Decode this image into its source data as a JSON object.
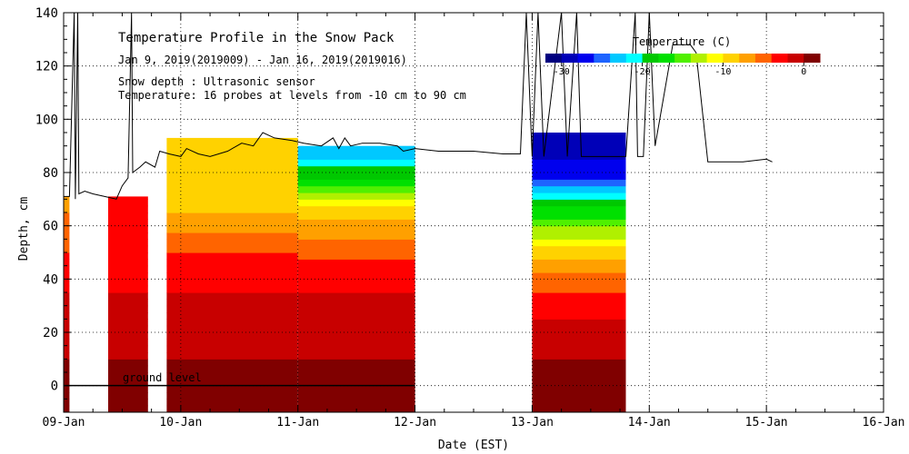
{
  "chart_data": {
    "type": "heatmap",
    "title": "Temperature Profile in the Snow Pack",
    "date_range": "Jan  9, 2019(2019009) - Jan 16, 2019(2019016)",
    "note_depth": "Snow depth : Ultrasonic sensor",
    "note_temp": "Temperature: 16 probes at levels from -10 cm to 90 cm",
    "xlabel": "Date (EST)",
    "ylabel": "Depth, cm",
    "x_ticks": [
      "09-Jan",
      "10-Jan",
      "11-Jan",
      "12-Jan",
      "13-Jan",
      "14-Jan",
      "15-Jan",
      "16-Jan"
    ],
    "xlim_days": [
      0,
      7
    ],
    "ylim": [
      -10,
      140
    ],
    "y_ticks": [
      0,
      20,
      40,
      60,
      80,
      100,
      120,
      140
    ],
    "ground_label": "ground level",
    "colorbar": {
      "title": "Temperature (C)",
      "range": [
        -32,
        2
      ],
      "tick_values": [
        -30,
        -20,
        -10,
        0
      ],
      "tick_labels": [
        "-30",
        "-20",
        "-10",
        "0"
      ],
      "colors": [
        "#000080",
        "#0000b8",
        "#0000ee",
        "#1e64ff",
        "#00c8ff",
        "#00ffff",
        "#00c800",
        "#00e000",
        "#50f000",
        "#b0f000",
        "#ffff00",
        "#ffd200",
        "#ffa000",
        "#ff6400",
        "#ff0000",
        "#c80000",
        "#800000"
      ]
    },
    "snow_depth_cm": [
      [
        0.0,
        71
      ],
      [
        0.05,
        71
      ],
      [
        0.09,
        140
      ],
      [
        0.1,
        70
      ],
      [
        0.12,
        140
      ],
      [
        0.13,
        72
      ],
      [
        0.18,
        73
      ],
      [
        0.25,
        72
      ],
      [
        0.35,
        71
      ],
      [
        0.45,
        70
      ],
      [
        0.5,
        75
      ],
      [
        0.55,
        78
      ],
      [
        0.58,
        140
      ],
      [
        0.59,
        80
      ],
      [
        0.65,
        82
      ],
      [
        0.7,
        84
      ],
      [
        0.78,
        82
      ],
      [
        0.82,
        88
      ],
      [
        0.9,
        87
      ],
      [
        1.0,
        86
      ],
      [
        1.05,
        89
      ],
      [
        1.15,
        87
      ],
      [
        1.25,
        86
      ],
      [
        1.4,
        88
      ],
      [
        1.52,
        91
      ],
      [
        1.62,
        90
      ],
      [
        1.7,
        95
      ],
      [
        1.8,
        93
      ],
      [
        1.95,
        92
      ],
      [
        2.05,
        91
      ],
      [
        2.2,
        90
      ],
      [
        2.3,
        93
      ],
      [
        2.35,
        89
      ],
      [
        2.4,
        93
      ],
      [
        2.45,
        90
      ],
      [
        2.55,
        91
      ],
      [
        2.7,
        91
      ],
      [
        2.85,
        90
      ],
      [
        2.9,
        88
      ],
      [
        3.0,
        89
      ],
      [
        3.2,
        88
      ],
      [
        3.5,
        88
      ],
      [
        3.75,
        87
      ],
      [
        3.9,
        87
      ],
      [
        3.95,
        140
      ],
      [
        4.0,
        86
      ],
      [
        4.05,
        140
      ],
      [
        4.1,
        86
      ],
      [
        4.25,
        140
      ],
      [
        4.3,
        86
      ],
      [
        4.38,
        140
      ],
      [
        4.42,
        86
      ],
      [
        4.8,
        86
      ],
      [
        4.88,
        140
      ],
      [
        4.9,
        86
      ],
      [
        4.95,
        86
      ],
      [
        5.0,
        140
      ],
      [
        5.05,
        90
      ],
      [
        5.2,
        128
      ],
      [
        5.35,
        128
      ],
      [
        5.4,
        125
      ],
      [
        5.5,
        84
      ],
      [
        5.8,
        84
      ],
      [
        6.0,
        85
      ],
      [
        6.05,
        84
      ]
    ],
    "temperature_segments": [
      {
        "start": 0.0,
        "end": 0.05,
        "levels": [
          [
            -10,
            2
          ],
          [
            10,
            0
          ],
          [
            25,
            -1
          ],
          [
            35,
            -2
          ],
          [
            45,
            -3
          ],
          [
            55,
            -5
          ],
          [
            65,
            -6
          ],
          [
            71,
            -7
          ]
        ]
      },
      {
        "start": 0.38,
        "end": 0.72,
        "levels": [
          [
            -10,
            2
          ],
          [
            10,
            0
          ],
          [
            25,
            -1
          ],
          [
            35,
            -2
          ],
          [
            45,
            -3
          ],
          [
            55,
            -4
          ],
          [
            65,
            -2
          ],
          [
            71,
            -3
          ]
        ]
      },
      {
        "start": 0.88,
        "end": 2.0,
        "levels": [
          [
            -10,
            2
          ],
          [
            10,
            0
          ],
          [
            25,
            -1
          ],
          [
            35,
            -2
          ],
          [
            45,
            -3
          ],
          [
            55,
            -5
          ],
          [
            65,
            -8
          ],
          [
            80,
            -9
          ],
          [
            93,
            -10
          ]
        ]
      },
      {
        "start": 2.0,
        "end": 3.0,
        "levels": [
          [
            -10,
            2
          ],
          [
            10,
            0
          ],
          [
            25,
            -1
          ],
          [
            35,
            -2
          ],
          [
            45,
            -3
          ],
          [
            55,
            -6
          ],
          [
            65,
            -9
          ],
          [
            75,
            -17
          ],
          [
            90,
            -24
          ]
        ]
      },
      {
        "start": 4.0,
        "end": 4.8,
        "levels": [
          [
            -10,
            2
          ],
          [
            10,
            0
          ],
          [
            20,
            -1
          ],
          [
            30,
            -3
          ],
          [
            40,
            -5
          ],
          [
            50,
            -9
          ],
          [
            60,
            -14
          ],
          [
            70,
            -20
          ],
          [
            80,
            -27
          ],
          [
            95,
            -30
          ]
        ]
      }
    ]
  }
}
